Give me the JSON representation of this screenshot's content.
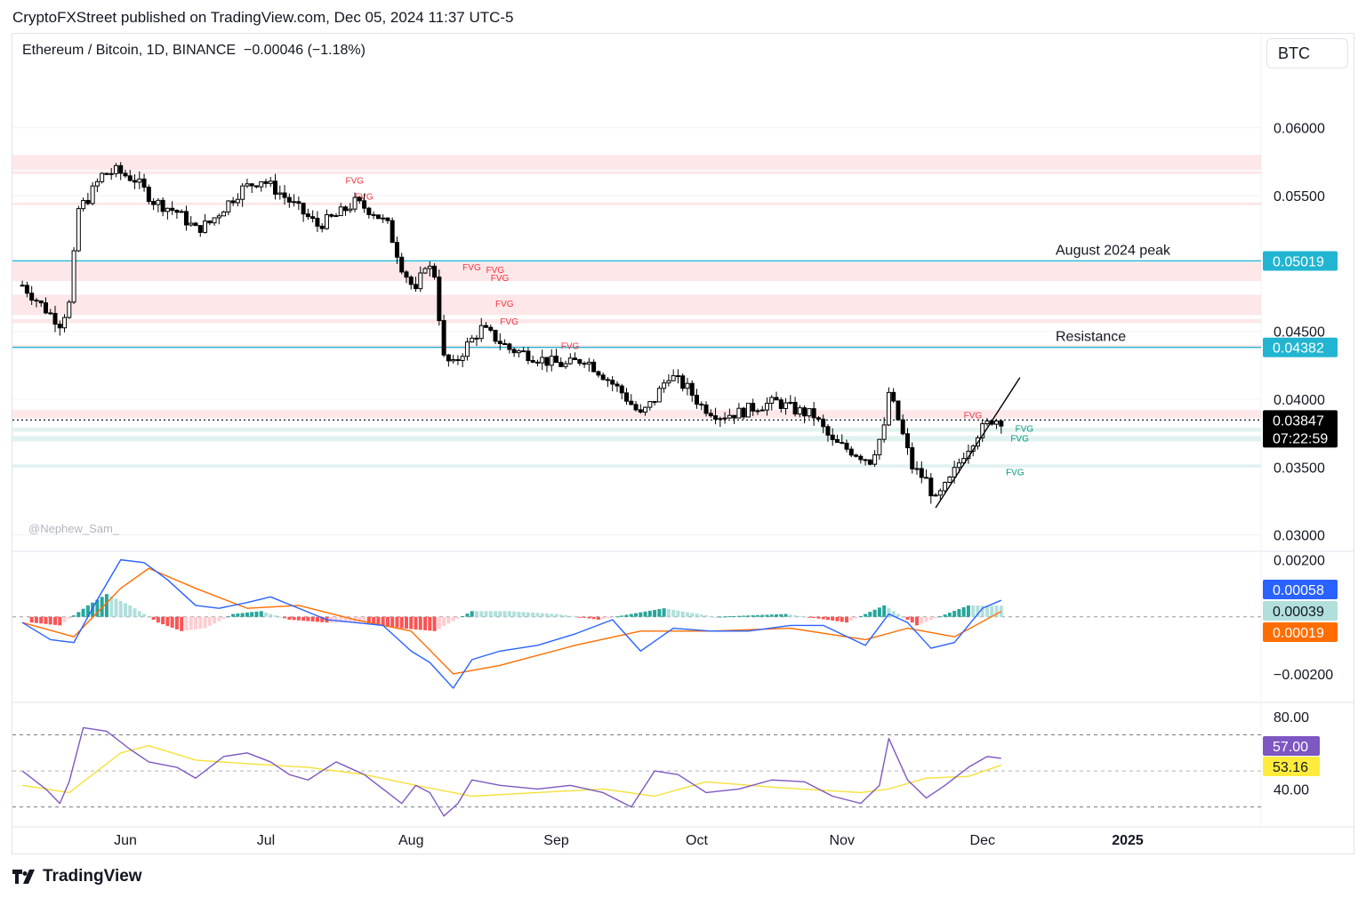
{
  "header": {
    "publisher_line": "CryptoFXStreet published on TradingView.com, Dec 05, 2024 11:37 UTC-5"
  },
  "legend": {
    "symbol": "Ethereum / Bitcoin, 1D, BINANCE",
    "change": "−0.00046 (−1.18%)"
  },
  "currency_button": "BTC",
  "watermark": "@Nephew_Sam_",
  "footer": {
    "logo_icon": "tradingview-logo-icon",
    "brand": "TradingView"
  },
  "chart_data": [
    {
      "type": "candlestick",
      "pane": "price",
      "ylim": [
        0.0288,
        0.0645
      ],
      "y_ticks": [
        "0.06000",
        "0.05500",
        "0.04500",
        "0.04000",
        "0.03500",
        "0.03000"
      ],
      "x_ticks": [
        "Jun",
        "Jul",
        "Aug",
        "Sep",
        "Oct",
        "Nov",
        "Dec",
        "2025"
      ],
      "close_path": [
        [
          "2024-05-10",
          0.0484
        ],
        [
          "2024-05-15",
          0.0466
        ],
        [
          "2024-05-18",
          0.0456
        ],
        [
          "2024-05-20",
          0.047
        ],
        [
          "2024-05-22",
          0.054
        ],
        [
          "2024-05-24",
          0.0548
        ],
        [
          "2024-05-27",
          0.0565
        ],
        [
          "2024-05-30",
          0.0568
        ],
        [
          "2024-06-03",
          0.0562
        ],
        [
          "2024-06-07",
          0.0546
        ],
        [
          "2024-06-12",
          0.0538
        ],
        [
          "2024-06-16",
          0.0525
        ],
        [
          "2024-06-19",
          0.053
        ],
        [
          "2024-06-23",
          0.0545
        ],
        [
          "2024-06-26",
          0.0555
        ],
        [
          "2024-06-30",
          0.0562
        ],
        [
          "2024-07-04",
          0.0552
        ],
        [
          "2024-07-08",
          0.054
        ],
        [
          "2024-07-12",
          0.0528
        ],
        [
          "2024-07-16",
          0.0535
        ],
        [
          "2024-07-20",
          0.0545
        ],
        [
          "2024-07-24",
          0.0538
        ],
        [
          "2024-07-27",
          0.0528
        ],
        [
          "2024-07-30",
          0.0498
        ],
        [
          "2024-08-02",
          0.0478
        ],
        [
          "2024-08-04",
          0.05
        ],
        [
          "2024-08-06",
          0.0492
        ],
        [
          "2024-08-08",
          0.043
        ],
        [
          "2024-08-10",
          0.0425
        ],
        [
          "2024-08-13",
          0.044
        ],
        [
          "2024-08-16",
          0.0452
        ],
        [
          "2024-08-19",
          0.0445
        ],
        [
          "2024-08-22",
          0.0437
        ],
        [
          "2024-08-26",
          0.0433
        ],
        [
          "2024-08-30",
          0.0428
        ],
        [
          "2024-09-03",
          0.0425
        ],
        [
          "2024-09-07",
          0.043
        ],
        [
          "2024-09-11",
          0.0418
        ],
        [
          "2024-09-15",
          0.0405
        ],
        [
          "2024-09-19",
          0.0388
        ],
        [
          "2024-09-22",
          0.04
        ],
        [
          "2024-09-25",
          0.0418
        ],
        [
          "2024-09-29",
          0.0408
        ],
        [
          "2024-10-02",
          0.0395
        ],
        [
          "2024-10-06",
          0.0388
        ],
        [
          "2024-10-10",
          0.039
        ],
        [
          "2024-10-14",
          0.0395
        ],
        [
          "2024-10-18",
          0.0398
        ],
        [
          "2024-10-22",
          0.0392
        ],
        [
          "2024-10-26",
          0.0388
        ],
        [
          "2024-10-30",
          0.0368
        ],
        [
          "2024-11-03",
          0.0362
        ],
        [
          "2024-11-07",
          0.0355
        ],
        [
          "2024-11-10",
          0.0378
        ],
        [
          "2024-11-11",
          0.0405
        ],
        [
          "2024-11-13",
          0.0385
        ],
        [
          "2024-11-16",
          0.035
        ],
        [
          "2024-11-19",
          0.034
        ],
        [
          "2024-11-21",
          0.0325
        ],
        [
          "2024-11-24",
          0.034
        ],
        [
          "2024-11-27",
          0.036
        ],
        [
          "2024-11-30",
          0.0375
        ],
        [
          "2024-12-03",
          0.0385
        ],
        [
          "2024-12-05",
          0.03847
        ]
      ],
      "price_labels": [
        {
          "value": "0.05019",
          "color": "#22b5d1"
        },
        {
          "value": "0.04382",
          "color": "#22b5d1"
        },
        {
          "value": "0.03847",
          "color": "#000000"
        },
        {
          "value": "07:22:59",
          "color": "#000000"
        }
      ],
      "horizontal_levels": [
        {
          "price": 0.05019,
          "label": "August 2024 peak",
          "color": "#22b5d1"
        },
        {
          "price": 0.04382,
          "label": "Resistance",
          "color": "#22b5d1"
        },
        {
          "price": 0.03847,
          "label": "",
          "color": "#131722",
          "dotted": true
        }
      ],
      "fvg_zones": [
        {
          "low": 0.0569,
          "high": 0.058,
          "color": "#f23645"
        },
        {
          "low": 0.0566,
          "high": 0.0568,
          "color": "#f23645"
        },
        {
          "low": 0.0543,
          "high": 0.0545,
          "color": "#f23645"
        },
        {
          "low": 0.0487,
          "high": 0.0501,
          "color": "#f23645"
        },
        {
          "low": 0.0462,
          "high": 0.0477,
          "color": "#f23645"
        },
        {
          "low": 0.0456,
          "high": 0.0459,
          "color": "#f23645"
        },
        {
          "low": 0.0438,
          "high": 0.044,
          "color": "#f23645"
        },
        {
          "low": 0.0386,
          "high": 0.0392,
          "color": "#f23645"
        },
        {
          "low": 0.0376,
          "high": 0.0379,
          "color": "#089981"
        },
        {
          "low": 0.0369,
          "high": 0.0373,
          "color": "#089981"
        },
        {
          "low": 0.035,
          "high": 0.0352,
          "color": "#089981"
        }
      ],
      "fvg_labels": [
        {
          "text": "FVG",
          "date": "2024-07-18",
          "price": 0.0559,
          "color": "#f23645"
        },
        {
          "text": "FVG",
          "date": "2024-07-20",
          "price": 0.0547,
          "color": "#f23645"
        },
        {
          "text": "FVG",
          "date": "2024-08-12",
          "price": 0.0495,
          "color": "#f23645"
        },
        {
          "text": "FVG",
          "date": "2024-08-17",
          "price": 0.0493,
          "color": "#f23645"
        },
        {
          "text": "FVG",
          "date": "2024-08-18",
          "price": 0.0487,
          "color": "#f23645"
        },
        {
          "text": "FVG",
          "date": "2024-08-19",
          "price": 0.0468,
          "color": "#f23645"
        },
        {
          "text": "FVG",
          "date": "2024-08-20",
          "price": 0.0455,
          "color": "#f23645"
        },
        {
          "text": "FVG",
          "date": "2024-09-02",
          "price": 0.0437,
          "color": "#f23645"
        },
        {
          "text": "FVG",
          "date": "2024-11-27",
          "price": 0.0386,
          "color": "#f23645"
        },
        {
          "text": "FVG",
          "date": "2024-12-08",
          "price": 0.0376,
          "color": "#089981"
        },
        {
          "text": "FVG",
          "date": "2024-12-07",
          "price": 0.0369,
          "color": "#089981"
        },
        {
          "text": "FVG",
          "date": "2024-12-06",
          "price": 0.0344,
          "color": "#089981"
        }
      ],
      "trendline": {
        "from": [
          "2024-11-21",
          0.032
        ],
        "to": [
          "2024-12-09",
          0.0416
        ]
      }
    },
    {
      "type": "macd",
      "pane": "macd",
      "ylim": [
        -0.003,
        0.0023
      ],
      "y_ticks": [
        "0.00200",
        "−0.00200"
      ],
      "value_labels": [
        {
          "value": "0.00058",
          "color": "#2962ff"
        },
        {
          "value": "0.00039",
          "color": "#b2dfdb"
        },
        {
          "value": "0.00019",
          "color": "#ff6d00"
        }
      ],
      "macd_line": [
        [
          "2024-05-10",
          -0.0002
        ],
        [
          "2024-05-16",
          -0.0008
        ],
        [
          "2024-05-21",
          -0.0009
        ],
        [
          "2024-05-26",
          0.0006
        ],
        [
          "2024-05-31",
          0.002
        ],
        [
          "2024-06-05",
          0.0019
        ],
        [
          "2024-06-10",
          0.0013
        ],
        [
          "2024-06-16",
          0.0004
        ],
        [
          "2024-06-21",
          0.0003
        ],
        [
          "2024-06-27",
          0.0005
        ],
        [
          "2024-07-02",
          0.0007
        ],
        [
          "2024-07-08",
          0.0003
        ],
        [
          "2024-07-14",
          -0.0001
        ],
        [
          "2024-07-20",
          -0.0002
        ],
        [
          "2024-07-26",
          -0.0003
        ],
        [
          "2024-08-01",
          -0.0012
        ],
        [
          "2024-08-05",
          -0.0016
        ],
        [
          "2024-08-10",
          -0.0025
        ],
        [
          "2024-08-14",
          -0.0015
        ],
        [
          "2024-08-20",
          -0.0012
        ],
        [
          "2024-08-28",
          -0.001
        ],
        [
          "2024-09-05",
          -0.0006
        ],
        [
          "2024-09-13",
          -0.0001
        ],
        [
          "2024-09-19",
          -0.0012
        ],
        [
          "2024-09-26",
          -0.0004
        ],
        [
          "2024-10-04",
          -0.0005
        ],
        [
          "2024-10-12",
          -0.0005
        ],
        [
          "2024-10-21",
          -0.0003
        ],
        [
          "2024-10-28",
          -0.0003
        ],
        [
          "2024-11-06",
          -0.001
        ],
        [
          "2024-11-11",
          0.0001
        ],
        [
          "2024-11-15",
          -0.0002
        ],
        [
          "2024-11-20",
          -0.0011
        ],
        [
          "2024-11-25",
          -0.0009
        ],
        [
          "2024-12-01",
          0.0003
        ],
        [
          "2024-12-05",
          0.00058
        ]
      ],
      "signal_line": [
        [
          "2024-05-10",
          -0.0002
        ],
        [
          "2024-05-21",
          -0.0007
        ],
        [
          "2024-05-31",
          0.001
        ],
        [
          "2024-06-06",
          0.0017
        ],
        [
          "2024-06-16",
          0.001
        ],
        [
          "2024-06-27",
          0.0003
        ],
        [
          "2024-07-08",
          0.0004
        ],
        [
          "2024-07-20",
          -0.0001
        ],
        [
          "2024-08-01",
          -0.0005
        ],
        [
          "2024-08-10",
          -0.002
        ],
        [
          "2024-08-20",
          -0.0017
        ],
        [
          "2024-09-05",
          -0.001
        ],
        [
          "2024-09-19",
          -0.0005
        ],
        [
          "2024-10-04",
          -0.0005
        ],
        [
          "2024-10-21",
          -0.0004
        ],
        [
          "2024-11-06",
          -0.0008
        ],
        [
          "2024-11-15",
          -0.0004
        ],
        [
          "2024-11-25",
          -0.0007
        ],
        [
          "2024-12-05",
          0.00019
        ]
      ],
      "histogram": [
        [
          "2024-05-12",
          -0.0002
        ],
        [
          "2024-05-18",
          -0.0003
        ],
        [
          "2024-05-24",
          0.0004
        ],
        [
          "2024-05-28",
          0.0008
        ],
        [
          "2024-06-02",
          0.0004
        ],
        [
          "2024-06-08",
          -0.0002
        ],
        [
          "2024-06-13",
          -0.0005
        ],
        [
          "2024-06-18",
          -0.0004
        ],
        [
          "2024-06-24",
          0.0001
        ],
        [
          "2024-06-30",
          0.0002
        ],
        [
          "2024-07-06",
          -0.0001
        ],
        [
          "2024-07-14",
          -0.0002
        ],
        [
          "2024-07-22",
          -0.0002
        ],
        [
          "2024-07-30",
          -0.0004
        ],
        [
          "2024-08-06",
          -0.0005
        ],
        [
          "2024-08-14",
          0.0002
        ],
        [
          "2024-08-22",
          0.0002
        ],
        [
          "2024-09-01",
          0.0001
        ],
        [
          "2024-09-10",
          -0.0001
        ],
        [
          "2024-09-24",
          0.0003
        ],
        [
          "2024-10-05",
          0.0
        ],
        [
          "2024-10-20",
          0.0001
        ],
        [
          "2024-11-02",
          -0.0002
        ],
        [
          "2024-11-10",
          0.0004
        ],
        [
          "2024-11-17",
          -0.0003
        ],
        [
          "2024-11-28",
          0.0004
        ],
        [
          "2024-12-05",
          0.00039
        ]
      ]
    },
    {
      "type": "rsi",
      "pane": "rsi",
      "ylim": [
        19,
        88
      ],
      "y_ticks": [
        "80.00",
        "40.00"
      ],
      "value_labels": [
        {
          "value": "57.00",
          "color": "#7e57c2"
        },
        {
          "value": "53.16",
          "color": "#ffeb3b"
        }
      ],
      "bands": [
        70,
        50,
        30
      ],
      "rsi_line": [
        [
          "2024-05-10",
          50
        ],
        [
          "2024-05-15",
          40
        ],
        [
          "2024-05-18",
          32
        ],
        [
          "2024-05-20",
          44
        ],
        [
          "2024-05-23",
          74
        ],
        [
          "2024-05-28",
          72
        ],
        [
          "2024-06-02",
          62
        ],
        [
          "2024-06-06",
          55
        ],
        [
          "2024-06-12",
          52
        ],
        [
          "2024-06-16",
          46
        ],
        [
          "2024-06-22",
          58
        ],
        [
          "2024-06-27",
          60
        ],
        [
          "2024-07-02",
          55
        ],
        [
          "2024-07-06",
          48
        ],
        [
          "2024-07-10",
          45
        ],
        [
          "2024-07-16",
          55
        ],
        [
          "2024-07-22",
          48
        ],
        [
          "2024-07-26",
          40
        ],
        [
          "2024-07-30",
          32
        ],
        [
          "2024-08-02",
          42
        ],
        [
          "2024-08-05",
          38
        ],
        [
          "2024-08-08",
          25
        ],
        [
          "2024-08-11",
          32
        ],
        [
          "2024-08-14",
          45
        ],
        [
          "2024-08-20",
          42
        ],
        [
          "2024-08-28",
          40
        ],
        [
          "2024-09-04",
          42
        ],
        [
          "2024-09-11",
          38
        ],
        [
          "2024-09-17",
          30
        ],
        [
          "2024-09-22",
          50
        ],
        [
          "2024-09-27",
          48
        ],
        [
          "2024-10-03",
          38
        ],
        [
          "2024-10-10",
          40
        ],
        [
          "2024-10-17",
          45
        ],
        [
          "2024-10-24",
          44
        ],
        [
          "2024-10-30",
          36
        ],
        [
          "2024-11-05",
          32
        ],
        [
          "2024-11-09",
          42
        ],
        [
          "2024-11-11",
          68
        ],
        [
          "2024-11-15",
          45
        ],
        [
          "2024-11-19",
          35
        ],
        [
          "2024-11-23",
          42
        ],
        [
          "2024-11-28",
          52
        ],
        [
          "2024-12-02",
          58
        ],
        [
          "2024-12-05",
          57.0
        ]
      ],
      "rsi_ma": [
        [
          "2024-05-10",
          42
        ],
        [
          "2024-05-20",
          38
        ],
        [
          "2024-05-31",
          60
        ],
        [
          "2024-06-06",
          64
        ],
        [
          "2024-06-16",
          56
        ],
        [
          "2024-06-27",
          54
        ],
        [
          "2024-07-10",
          52
        ],
        [
          "2024-07-22",
          48
        ],
        [
          "2024-08-02",
          42
        ],
        [
          "2024-08-14",
          36
        ],
        [
          "2024-08-28",
          38
        ],
        [
          "2024-09-11",
          40
        ],
        [
          "2024-09-22",
          36
        ],
        [
          "2024-10-03",
          44
        ],
        [
          "2024-10-17",
          41
        ],
        [
          "2024-11-05",
          38
        ],
        [
          "2024-11-11",
          40
        ],
        [
          "2024-11-19",
          46
        ],
        [
          "2024-11-28",
          47
        ],
        [
          "2024-12-05",
          53.16
        ]
      ]
    }
  ]
}
